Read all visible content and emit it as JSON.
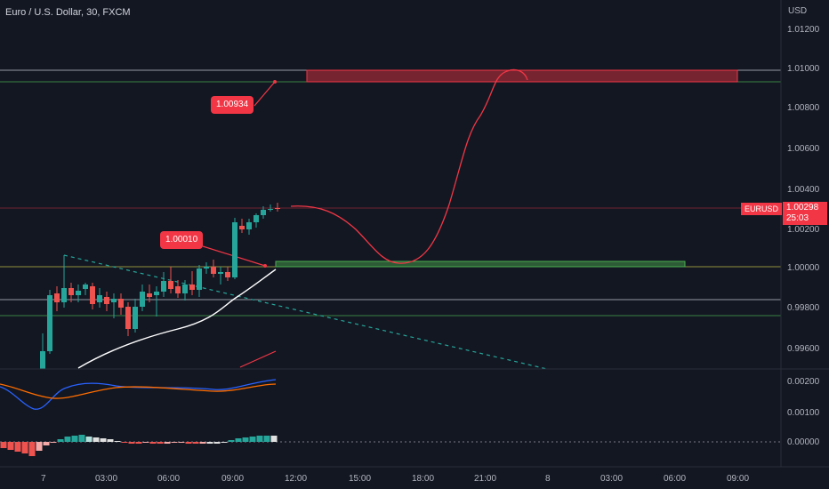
{
  "header": {
    "title": "Euro / U.S. Dollar, 30, FXCM",
    "currency": "USD"
  },
  "badges": {
    "symbol": "EURUSD",
    "price": "1.00298",
    "countdown": "25:03"
  },
  "callouts": {
    "upper": "1.00934",
    "lower": "1.00010"
  },
  "price_axis": [
    "1.01200",
    "1.01000",
    "1.00800",
    "1.00600",
    "1.00400",
    "1.00200",
    "1.00000",
    "0.99800",
    "0.99600"
  ],
  "indicator1_axis": [
    "0.00200",
    "0.00100"
  ],
  "indicator2_axis": [
    "0.00000"
  ],
  "time_axis": [
    "7",
    "03:00",
    "06:00",
    "09:00",
    "12:00",
    "15:00",
    "18:00",
    "21:00",
    "8",
    "03:00",
    "06:00",
    "09:00"
  ],
  "colors": {
    "background": "#131722",
    "up": "#26a69a",
    "down": "#ef5350",
    "accent": "#f23645"
  }
}
